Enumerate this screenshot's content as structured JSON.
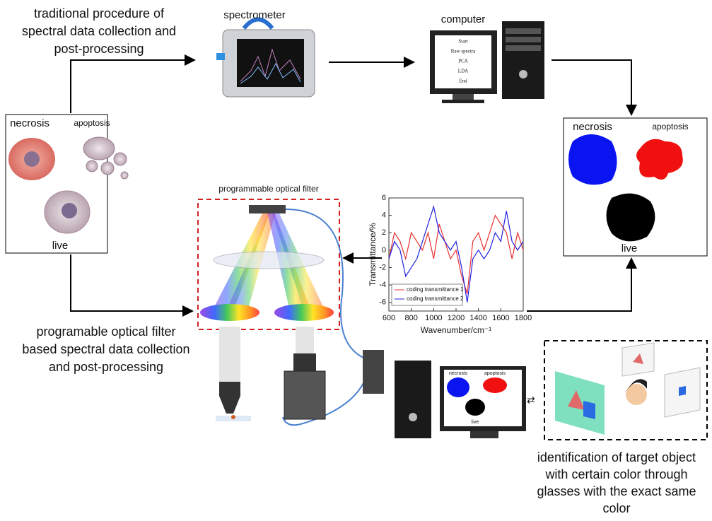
{
  "top_caption": [
    "traditional procedure of",
    "spectral data collection and",
    "post-processing"
  ],
  "bottom_caption": [
    "programable optical filter",
    "based spectral data collection",
    "and post-processing"
  ],
  "right_caption": [
    "identification of target object",
    "with certain color through",
    "glasses with the exact same",
    "color"
  ],
  "nodes": {
    "spectrometer": "spectrometer",
    "computer": "computer",
    "filter": "programmable optical filter"
  },
  "cells_panel": {
    "necrosis": "necrosis",
    "apoptosis": "apoptosis",
    "live": "live"
  },
  "result_panel": {
    "necrosis": "necrosis",
    "apoptosis": "apoptosis",
    "live": "live"
  },
  "flowchart": [
    "Start",
    "Raw spectra",
    "PCA",
    "LDA",
    "End"
  ],
  "monitor_panel": {
    "necrosis": "necrosis",
    "apoptosis": "apoptosis",
    "live": "live"
  },
  "chart": {
    "type": "line",
    "xlabel": "Wavenumber/cm⁻¹",
    "ylabel": "Transmittance/%",
    "x": [
      600,
      650,
      700,
      750,
      800,
      850,
      900,
      950,
      1000,
      1050,
      1100,
      1150,
      1200,
      1250,
      1300,
      1350,
      1400,
      1450,
      1500,
      1550,
      1600,
      1650,
      1700,
      1750,
      1800
    ],
    "series": [
      {
        "name": "coding transmittance 1",
        "color": "#e83030",
        "values": [
          -1,
          2,
          1,
          -1,
          2,
          1,
          0,
          2,
          -1,
          3,
          1,
          -1,
          0,
          -3,
          -5,
          1,
          2,
          0,
          2,
          4,
          3,
          2,
          -1,
          2,
          0
        ]
      },
      {
        "name": "coding transmittance 2",
        "color": "#2020e0",
        "values": [
          -1,
          1,
          0,
          -3,
          -2,
          -1,
          1,
          3,
          5,
          2,
          1,
          0,
          1,
          -2,
          -6,
          -1,
          0,
          -1,
          0,
          2,
          1,
          4.5,
          1,
          0,
          1
        ]
      }
    ],
    "xlim": [
      600,
      1800
    ],
    "xticks": [
      600,
      800,
      1000,
      1200,
      1400,
      1600,
      1800
    ],
    "ylim": [
      -7,
      6
    ],
    "yticks": [
      -6,
      -4,
      -2,
      0,
      2,
      4,
      6
    ]
  }
}
